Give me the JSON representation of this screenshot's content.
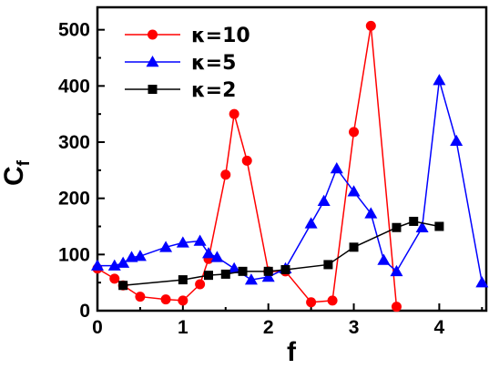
{
  "chart_data": {
    "type": "line",
    "xlabel": "f",
    "ylabel_main": "C",
    "ylabel_sub": "f",
    "xlim": [
      0,
      4.55
    ],
    "ylim": [
      0,
      540
    ],
    "xticks": [
      0,
      1,
      2,
      3,
      4
    ],
    "yticks": [
      0,
      100,
      200,
      300,
      400,
      500
    ],
    "legend_position": "top-left",
    "series": [
      {
        "name": "κ=10",
        "color": "#ff0000",
        "marker": "circle",
        "points": [
          [
            0,
            75
          ],
          [
            0.2,
            57
          ],
          [
            0.3,
            45
          ],
          [
            0.5,
            25
          ],
          [
            0.8,
            20
          ],
          [
            1.0,
            18
          ],
          [
            1.2,
            47
          ],
          [
            1.3,
            92
          ],
          [
            1.5,
            242
          ],
          [
            1.6,
            350
          ],
          [
            1.75,
            267
          ],
          [
            2.0,
            70
          ],
          [
            2.2,
            70
          ],
          [
            2.5,
            15
          ],
          [
            2.75,
            18
          ],
          [
            3.0,
            318
          ],
          [
            3.2,
            507
          ],
          [
            3.5,
            7
          ]
        ]
      },
      {
        "name": "κ=5",
        "color": "#0000ff",
        "marker": "triangle",
        "points": [
          [
            0,
            80
          ],
          [
            0.2,
            80
          ],
          [
            0.3,
            85
          ],
          [
            0.4,
            95
          ],
          [
            0.5,
            97
          ],
          [
            0.8,
            113
          ],
          [
            1.0,
            121
          ],
          [
            1.2,
            124
          ],
          [
            1.3,
            102
          ],
          [
            1.4,
            95
          ],
          [
            1.6,
            75
          ],
          [
            1.8,
            55
          ],
          [
            2.0,
            60
          ],
          [
            2.2,
            75
          ],
          [
            2.5,
            155
          ],
          [
            2.65,
            195
          ],
          [
            2.8,
            253
          ],
          [
            3.0,
            212
          ],
          [
            3.2,
            173
          ],
          [
            3.35,
            90
          ],
          [
            3.5,
            70
          ],
          [
            3.8,
            148
          ],
          [
            4.0,
            410
          ],
          [
            4.2,
            302
          ],
          [
            4.5,
            50
          ]
        ]
      },
      {
        "name": "κ=2",
        "color": "#000000",
        "marker": "square",
        "points": [
          [
            0.3,
            45
          ],
          [
            1.0,
            55
          ],
          [
            1.3,
            63
          ],
          [
            1.5,
            65
          ],
          [
            1.7,
            70
          ],
          [
            2.0,
            70
          ],
          [
            2.2,
            73
          ],
          [
            2.7,
            82
          ],
          [
            3.0,
            113
          ],
          [
            3.5,
            148
          ],
          [
            3.7,
            159
          ],
          [
            4.0,
            150
          ]
        ]
      }
    ]
  }
}
